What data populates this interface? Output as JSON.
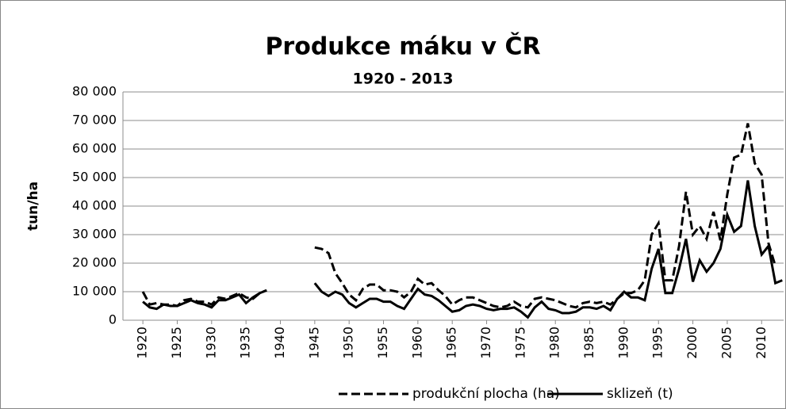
{
  "chart_data": {
    "type": "line",
    "title": "Produkce máku v ČR",
    "subtitle": "1920 - 2013",
    "y_label": "tun/ha",
    "x": [
      1920,
      1921,
      1922,
      1923,
      1924,
      1925,
      1926,
      1927,
      1928,
      1929,
      1930,
      1931,
      1932,
      1933,
      1934,
      1935,
      1936,
      1937,
      1938,
      1939,
      1940,
      1941,
      1942,
      1943,
      1944,
      1945,
      1946,
      1947,
      1948,
      1949,
      1950,
      1951,
      1952,
      1953,
      1954,
      1955,
      1956,
      1957,
      1958,
      1959,
      1960,
      1961,
      1962,
      1963,
      1964,
      1965,
      1966,
      1967,
      1968,
      1969,
      1970,
      1971,
      1972,
      1973,
      1974,
      1975,
      1976,
      1977,
      1978,
      1979,
      1980,
      1981,
      1982,
      1983,
      1984,
      1985,
      1986,
      1987,
      1988,
      1989,
      1990,
      1991,
      1992,
      1993,
      1994,
      1995,
      1996,
      1997,
      1998,
      1999,
      2000,
      2001,
      2002,
      2003,
      2004,
      2005,
      2006,
      2007,
      2008,
      2009,
      2010,
      2011,
      2012,
      2013
    ],
    "series": [
      {
        "name": "produkční plocha (ha)",
        "color": "#000000",
        "dash": true,
        "values": [
          10000,
          5500,
          6000,
          5500,
          5500,
          5000,
          7000,
          7500,
          6500,
          6500,
          5500,
          8000,
          7500,
          8500,
          9500,
          8000,
          7500,
          9500,
          10500,
          null,
          null,
          null,
          null,
          null,
          null,
          25500,
          25000,
          23500,
          16500,
          13000,
          9000,
          7000,
          11000,
          12500,
          12500,
          10500,
          10500,
          10000,
          8000,
          10000,
          14500,
          12500,
          13000,
          10500,
          8500,
          5500,
          7000,
          8000,
          8000,
          7000,
          6000,
          5000,
          4500,
          5000,
          6500,
          5000,
          4500,
          7500,
          8000,
          7500,
          7000,
          6000,
          5000,
          4500,
          6000,
          6500,
          6000,
          6500,
          5500,
          7500,
          9500,
          9500,
          10500,
          14000,
          30000,
          34000,
          14000,
          14000,
          26000,
          45000,
          30000,
          33000,
          28500,
          38000,
          28000,
          44000,
          57000,
          58000,
          69000,
          55000,
          51000,
          27000,
          19000,
          null
        ]
      },
      {
        "name": "sklizeň (t)",
        "color": "#000000",
        "dash": false,
        "values": [
          6500,
          4500,
          4000,
          5500,
          5000,
          5000,
          6000,
          7000,
          6000,
          5500,
          4500,
          7000,
          7000,
          8000,
          9000,
          6000,
          8000,
          9500,
          10500,
          null,
          null,
          null,
          null,
          null,
          null,
          13000,
          10000,
          8500,
          10000,
          9000,
          6000,
          4500,
          6000,
          7500,
          7500,
          6500,
          6500,
          5000,
          4000,
          7500,
          11000,
          9000,
          8500,
          7000,
          5000,
          3000,
          3500,
          5000,
          5500,
          5000,
          4000,
          3500,
          4000,
          4000,
          4500,
          3000,
          1000,
          4500,
          6500,
          4000,
          3500,
          2500,
          2500,
          3000,
          4500,
          4500,
          4000,
          5000,
          3500,
          7500,
          10000,
          8000,
          8000,
          7000,
          18000,
          25000,
          9500,
          9500,
          18000,
          28500,
          13500,
          21000,
          17000,
          20000,
          25000,
          37000,
          31000,
          33000,
          49000,
          33000,
          23000,
          26000,
          13000,
          14000
        ]
      }
    ],
    "xlim": [
      1917.1,
      2013.2
    ],
    "xticks": [
      1920,
      1925,
      1930,
      1935,
      1940,
      1945,
      1950,
      1955,
      1960,
      1965,
      1970,
      1975,
      1980,
      1985,
      1990,
      1995,
      2000,
      2005,
      2010
    ],
    "ylim": [
      0,
      80000
    ],
    "yticks": [
      0,
      {
        "value": 10000,
        "label": "10 000"
      },
      {
        "value": 20000,
        "label": "20 000"
      },
      {
        "value": 30000,
        "label": "30 000"
      },
      {
        "value": 40000,
        "label": "40 000"
      },
      {
        "value": 50000,
        "label": "50 000"
      },
      {
        "value": 60000,
        "label": "60 000"
      },
      {
        "value": 70000,
        "label": "70 000"
      },
      {
        "value": 80000,
        "label": "80 000"
      }
    ],
    "grid": true,
    "legend": "bottom"
  }
}
